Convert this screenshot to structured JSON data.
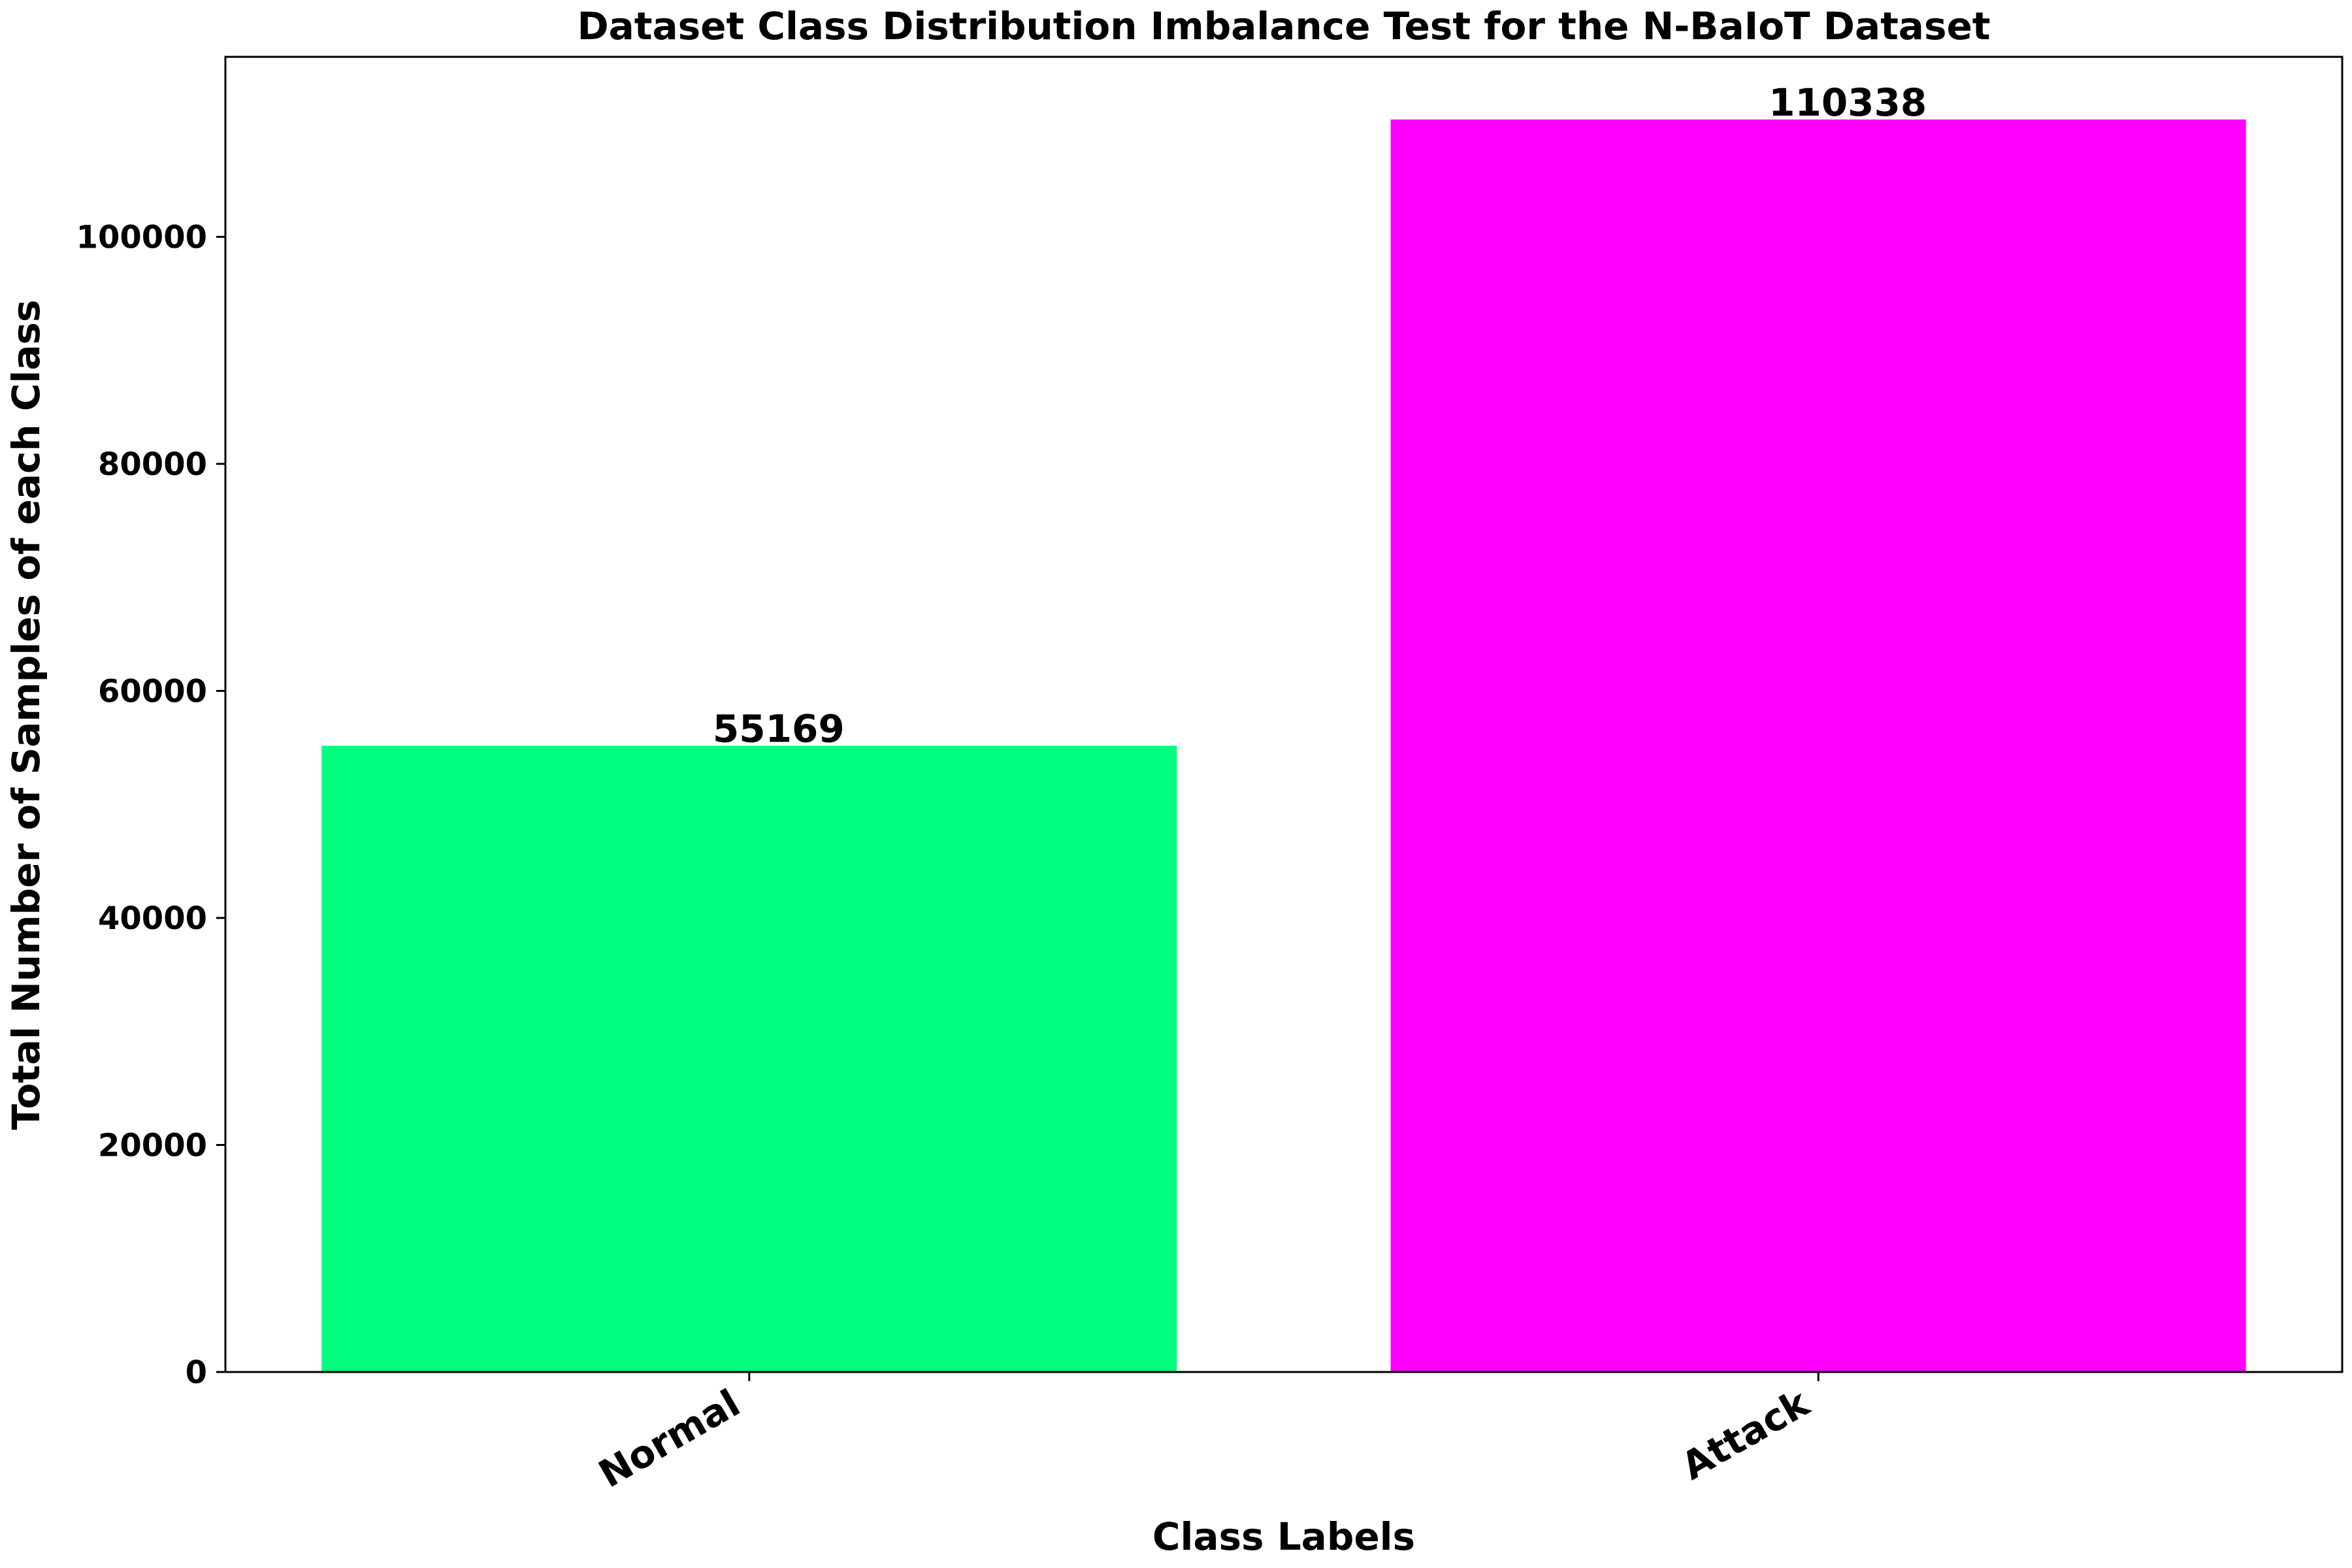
{
  "chart_data": {
    "type": "bar",
    "title": "Dataset Class Distribution Imbalance Test for the N-BaIoT Dataset",
    "xlabel": "Class Labels",
    "ylabel": "Total Number of Samples of each Class",
    "categories": [
      "Normal",
      "Attack"
    ],
    "values": [
      55169,
      110338
    ],
    "data_labels": [
      "55169",
      "110338"
    ],
    "colors": [
      "#00ff7f",
      "#ff00ff"
    ],
    "ylim": [
      0,
      115855
    ],
    "yticks": [
      0,
      20000,
      40000,
      60000,
      80000,
      100000
    ],
    "ytick_labels": [
      "0",
      "20000",
      "40000",
      "60000",
      "80000",
      "100000"
    ],
    "grid": false,
    "legend": "none"
  }
}
